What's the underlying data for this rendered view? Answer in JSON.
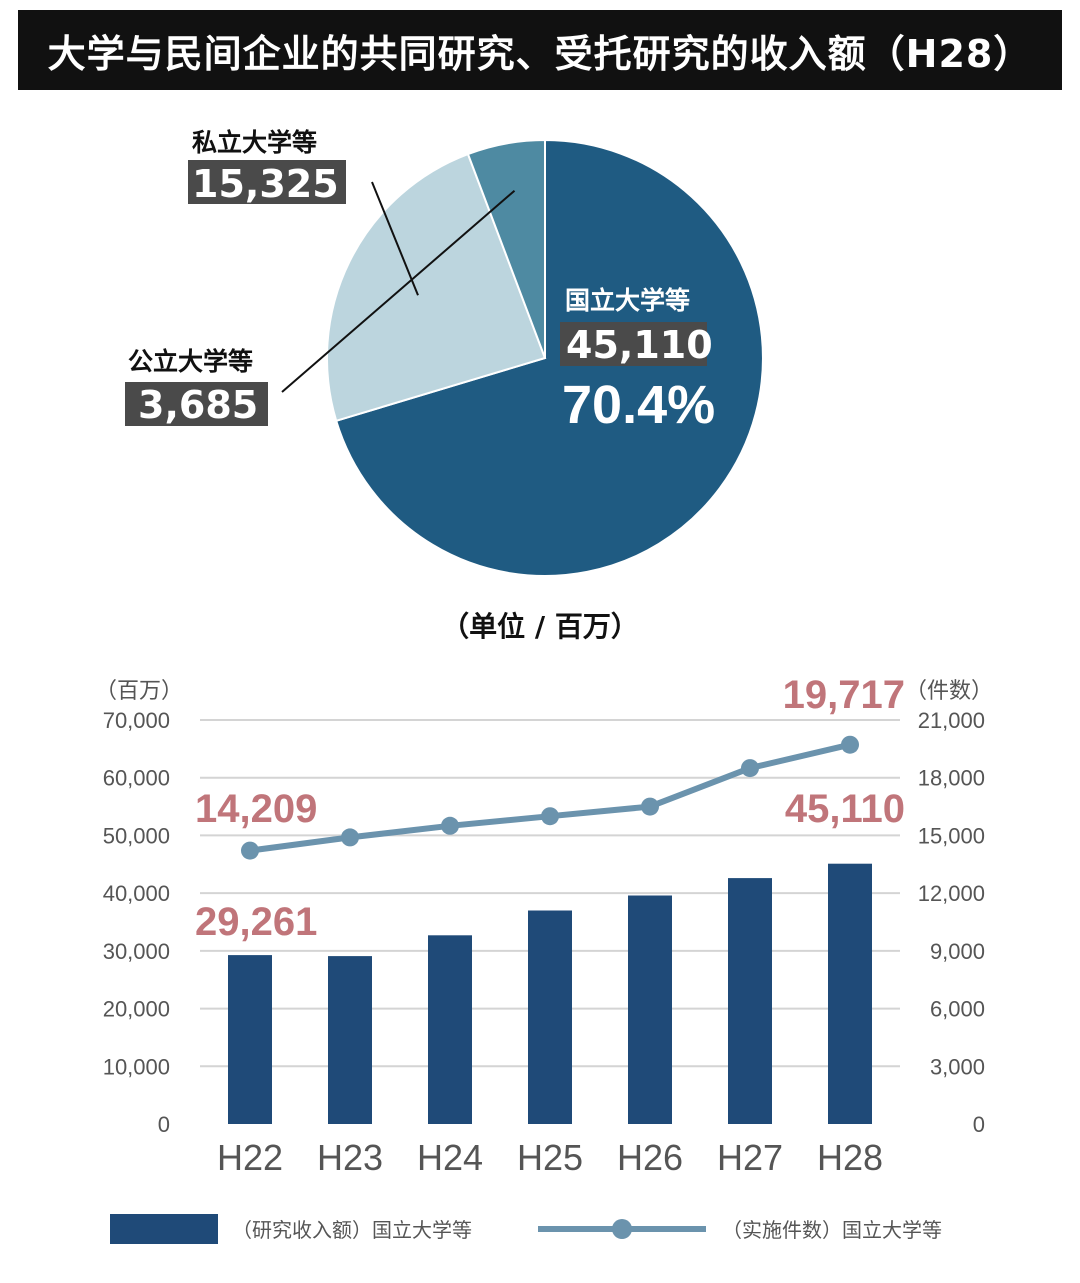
{
  "page_title": "大学与民间企业的共同研究、受托研究的收入额（H28）",
  "colors": {
    "title_bg": "#111111",
    "national": "#1f5b82",
    "public": "#4e8aa2",
    "private": "#bcd5de",
    "bar": "#1f4a78",
    "line": "#6b93ad",
    "annotation": "#c0757a",
    "label_box": "#4a4a4a"
  },
  "chart_data": [
    {
      "type": "pie",
      "unit_label": "（单位 / 百万）",
      "slices": [
        {
          "name": "国立大学等",
          "value": 45110,
          "value_label": "45,110",
          "percent_label": "70.4%"
        },
        {
          "name": "私立大学等",
          "value": 15325,
          "value_label": "15,325"
        },
        {
          "name": "公立大学等",
          "value": 3685,
          "value_label": "3,685"
        }
      ]
    },
    {
      "type": "bar+line",
      "categories": [
        "H22",
        "H23",
        "H24",
        "H25",
        "H26",
        "H27",
        "H28"
      ],
      "series": [
        {
          "name": "（研究收入额）国立大学等",
          "type": "bar",
          "axis": "left",
          "values": [
            29261,
            29100,
            32700,
            37000,
            39600,
            42600,
            45110
          ]
        },
        {
          "name": "（实施件数）国立大学等",
          "type": "line",
          "axis": "right",
          "values": [
            14209,
            14900,
            15500,
            16000,
            16500,
            18500,
            19717
          ]
        }
      ],
      "y_left": {
        "label": "（百万）",
        "range": [
          0,
          70000
        ],
        "ticks": [
          "0",
          "10,000",
          "20,000",
          "30,000",
          "40,000",
          "50,000",
          "60,000",
          "70,000"
        ]
      },
      "y_right": {
        "label": "（件数）",
        "range": [
          0,
          21000
        ],
        "ticks": [
          "0",
          "3,000",
          "6,000",
          "9,000",
          "12,000",
          "15,000",
          "18,000",
          "21,000"
        ]
      },
      "grid": true,
      "legend_position": "bottom",
      "annotations": [
        {
          "text": "14,209",
          "series": "line",
          "index": 0
        },
        {
          "text": "19,717",
          "series": "line",
          "index": 6
        },
        {
          "text": "29,261",
          "series": "bar",
          "index": 0
        },
        {
          "text": "45,110",
          "series": "bar",
          "index": 6
        }
      ]
    }
  ]
}
